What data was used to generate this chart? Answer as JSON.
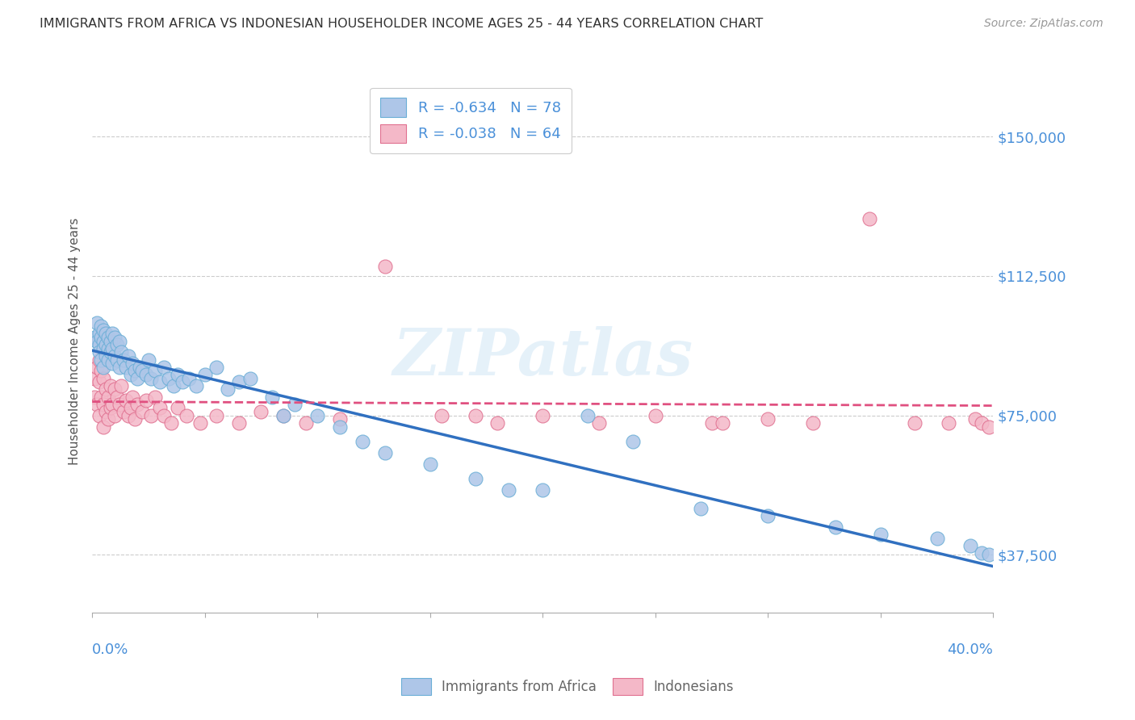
{
  "title": "IMMIGRANTS FROM AFRICA VS INDONESIAN HOUSEHOLDER INCOME AGES 25 - 44 YEARS CORRELATION CHART",
  "source": "Source: ZipAtlas.com",
  "ylabel": "Householder Income Ages 25 - 44 years",
  "xlim": [
    0.0,
    0.4
  ],
  "ylim": [
    22000,
    168000
  ],
  "yticks": [
    37500,
    75000,
    112500,
    150000
  ],
  "ytick_labels": [
    "$37,500",
    "$75,000",
    "$112,500",
    "$150,000"
  ],
  "blue_color": "#aec6e8",
  "blue_edge": "#6aaed6",
  "pink_color": "#f4b8c8",
  "pink_edge": "#e07090",
  "blue_line_color": "#3070c0",
  "pink_line_color": "#e05080",
  "legend_label_blue": "Immigrants from Africa",
  "legend_label_pink": "Indonesians",
  "axis_label_color": "#4a90d9",
  "watermark": "ZIPatlas",
  "blue_scatter_x": [
    0.001,
    0.002,
    0.002,
    0.003,
    0.003,
    0.003,
    0.004,
    0.004,
    0.004,
    0.005,
    0.005,
    0.005,
    0.005,
    0.006,
    0.006,
    0.006,
    0.007,
    0.007,
    0.007,
    0.008,
    0.008,
    0.009,
    0.009,
    0.009,
    0.01,
    0.01,
    0.011,
    0.011,
    0.012,
    0.012,
    0.013,
    0.014,
    0.015,
    0.016,
    0.017,
    0.018,
    0.019,
    0.02,
    0.021,
    0.022,
    0.024,
    0.025,
    0.026,
    0.028,
    0.03,
    0.032,
    0.034,
    0.036,
    0.038,
    0.04,
    0.043,
    0.046,
    0.05,
    0.055,
    0.06,
    0.065,
    0.07,
    0.08,
    0.085,
    0.09,
    0.1,
    0.11,
    0.12,
    0.13,
    0.15,
    0.17,
    0.185,
    0.2,
    0.22,
    0.24,
    0.27,
    0.3,
    0.33,
    0.35,
    0.375,
    0.39,
    0.395,
    0.398
  ],
  "blue_scatter_y": [
    96000,
    100000,
    95000,
    97000,
    94000,
    92000,
    99000,
    96000,
    90000,
    98000,
    95000,
    93000,
    88000,
    97000,
    94000,
    91000,
    96000,
    93000,
    90000,
    95000,
    92000,
    97000,
    93000,
    89000,
    96000,
    91000,
    94000,
    90000,
    95000,
    88000,
    92000,
    90000,
    88000,
    91000,
    86000,
    89000,
    87000,
    85000,
    88000,
    87000,
    86000,
    90000,
    85000,
    87000,
    84000,
    88000,
    85000,
    83000,
    86000,
    84000,
    85000,
    83000,
    86000,
    88000,
    82000,
    84000,
    85000,
    80000,
    75000,
    78000,
    75000,
    72000,
    68000,
    65000,
    62000,
    58000,
    55000,
    55000,
    75000,
    68000,
    50000,
    48000,
    45000,
    43000,
    42000,
    40000,
    38000,
    37500
  ],
  "pink_scatter_x": [
    0.001,
    0.001,
    0.002,
    0.002,
    0.003,
    0.003,
    0.003,
    0.004,
    0.004,
    0.005,
    0.005,
    0.005,
    0.006,
    0.006,
    0.007,
    0.007,
    0.008,
    0.008,
    0.009,
    0.01,
    0.01,
    0.011,
    0.012,
    0.013,
    0.014,
    0.015,
    0.016,
    0.017,
    0.018,
    0.019,
    0.02,
    0.022,
    0.024,
    0.026,
    0.028,
    0.03,
    0.032,
    0.035,
    0.038,
    0.042,
    0.048,
    0.055,
    0.065,
    0.075,
    0.085,
    0.095,
    0.11,
    0.13,
    0.155,
    0.18,
    0.2,
    0.225,
    0.25,
    0.275,
    0.3,
    0.32,
    0.345,
    0.365,
    0.38,
    0.392,
    0.395,
    0.398,
    0.17,
    0.28
  ],
  "pink_scatter_y": [
    85000,
    80000,
    88000,
    78000,
    90000,
    84000,
    75000,
    87000,
    80000,
    85000,
    78000,
    72000,
    82000,
    76000,
    80000,
    74000,
    83000,
    77000,
    78000,
    82000,
    75000,
    80000,
    78000,
    83000,
    76000,
    79000,
    75000,
    77000,
    80000,
    74000,
    78000,
    76000,
    79000,
    75000,
    80000,
    77000,
    75000,
    73000,
    77000,
    75000,
    73000,
    75000,
    73000,
    76000,
    75000,
    73000,
    74000,
    115000,
    75000,
    73000,
    75000,
    73000,
    75000,
    73000,
    74000,
    73000,
    128000,
    73000,
    73000,
    74000,
    73000,
    72000,
    75000,
    73000
  ]
}
